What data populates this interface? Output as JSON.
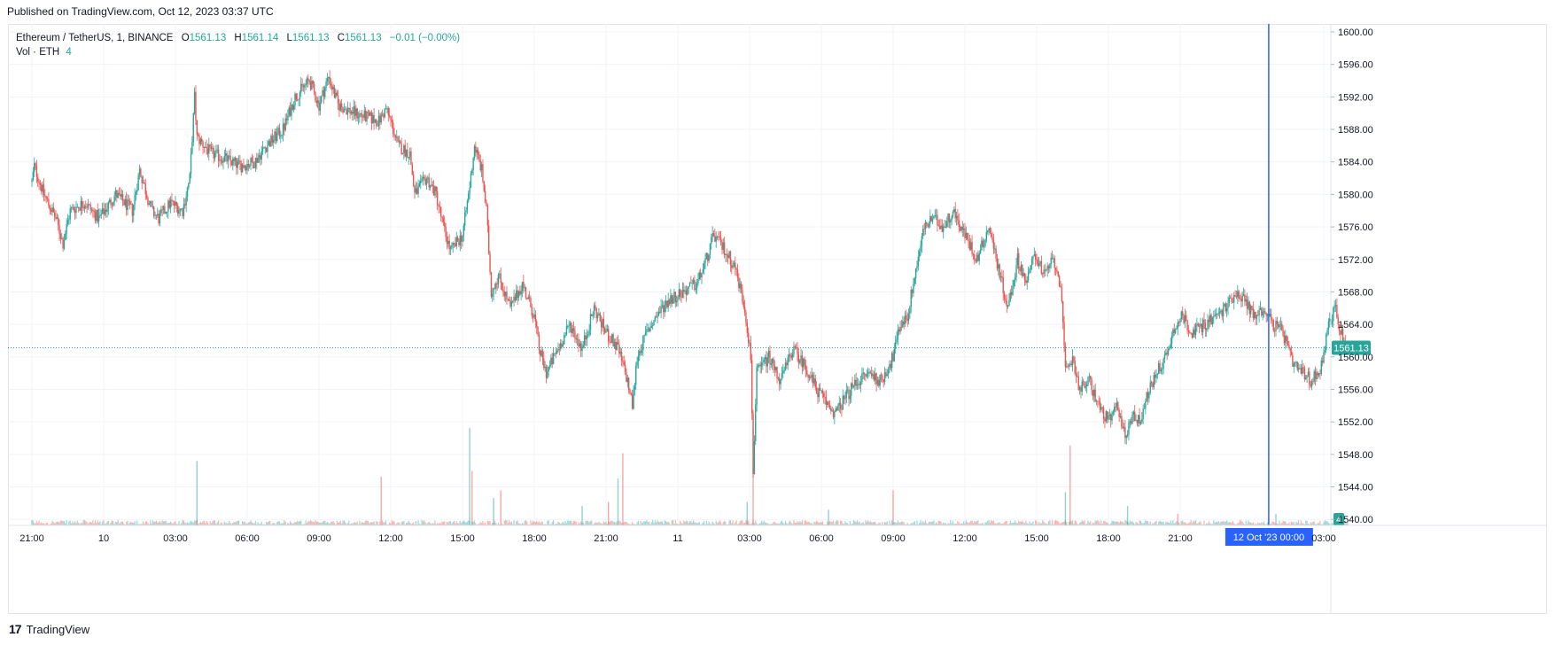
{
  "header": {
    "published": "Published on TradingView.com, Oct 12, 2023 03:37 UTC"
  },
  "legend": {
    "symbol": "Ethereum / TetherUS, 1, BINANCE",
    "open_label": "O",
    "open": "1561.13",
    "high_label": "H",
    "high": "1561.14",
    "low_label": "L",
    "low": "1561.13",
    "close_label": "C",
    "close": "1561.13",
    "change": "−0.01 (−0.00%)",
    "vol_label": "Vol · ETH",
    "vol_value": "4"
  },
  "footer": {
    "brand": "TradingView"
  },
  "colors": {
    "up": "#26a69a",
    "down": "#ef5350",
    "cursor": "#2962ff",
    "grid": "#f0f3fa",
    "text": "#131722"
  },
  "chart_data": {
    "type": "candlestick",
    "symbol": "ETHUSDT",
    "ylim": [
      1538,
      1601
    ],
    "y_ticks": [
      "1600.00",
      "1596.00",
      "1592.00",
      "1588.00",
      "1584.00",
      "1580.00",
      "1576.00",
      "1572.00",
      "1568.00",
      "1564.00",
      "1560.00",
      "1556.00",
      "1552.00",
      "1548.00",
      "1544.00",
      "1540.00"
    ],
    "y_tick_values": [
      1600,
      1596,
      1592,
      1588,
      1584,
      1580,
      1576,
      1572,
      1568,
      1564,
      1560,
      1556,
      1552,
      1548,
      1544,
      1540
    ],
    "x_ticks": [
      "21:00",
      "10",
      "03:00",
      "06:00",
      "09:00",
      "12:00",
      "15:00",
      "18:00",
      "21:00",
      "11",
      "03:00",
      "06:00",
      "09:00",
      "12:00",
      "15:00",
      "18:00",
      "21:00",
      "03:00"
    ],
    "x_tick_hours": [
      0,
      3,
      6,
      9,
      12,
      15,
      18,
      21,
      24,
      27,
      30,
      33,
      36,
      39,
      42,
      45,
      48,
      54
    ],
    "price_path": [
      [
        0,
        1581.5
      ],
      [
        0.1,
        1583.5
      ],
      [
        0.5,
        1580
      ],
      [
        1.0,
        1577
      ],
      [
        1.3,
        1574
      ],
      [
        1.6,
        1578
      ],
      [
        2.2,
        1579
      ],
      [
        2.8,
        1577
      ],
      [
        3.5,
        1580
      ],
      [
        4.2,
        1578
      ],
      [
        4.5,
        1583
      ],
      [
        5.0,
        1578
      ],
      [
        5.3,
        1577
      ],
      [
        5.8,
        1579
      ],
      [
        6.3,
        1578
      ],
      [
        6.6,
        1582
      ],
      [
        6.8,
        1592
      ],
      [
        6.9,
        1587
      ],
      [
        7.5,
        1585
      ],
      [
        8.0,
        1584.5
      ],
      [
        8.7,
        1583.5
      ],
      [
        9.3,
        1584
      ],
      [
        9.8,
        1586
      ],
      [
        10.5,
        1588
      ],
      [
        11.0,
        1592
      ],
      [
        11.6,
        1594
      ],
      [
        12.0,
        1591
      ],
      [
        12.4,
        1594.5
      ],
      [
        12.8,
        1591
      ],
      [
        13.5,
        1590
      ],
      [
        14.0,
        1589.5
      ],
      [
        14.5,
        1589
      ],
      [
        14.8,
        1590.5
      ],
      [
        15.0,
        1589
      ],
      [
        15.3,
        1586
      ],
      [
        15.8,
        1585
      ],
      [
        16.0,
        1580
      ],
      [
        16.5,
        1582
      ],
      [
        16.9,
        1580
      ],
      [
        17.2,
        1576
      ],
      [
        17.5,
        1573
      ],
      [
        18.0,
        1575
      ],
      [
        18.3,
        1581
      ],
      [
        18.5,
        1586
      ],
      [
        18.8,
        1583
      ],
      [
        19.0,
        1578
      ],
      [
        19.2,
        1568
      ],
      [
        19.5,
        1570
      ],
      [
        20.0,
        1566
      ],
      [
        20.5,
        1569
      ],
      [
        21.0,
        1565
      ],
      [
        21.2,
        1561
      ],
      [
        21.5,
        1558
      ],
      [
        22.0,
        1561
      ],
      [
        22.5,
        1564
      ],
      [
        23.0,
        1561
      ],
      [
        23.5,
        1566
      ],
      [
        24.0,
        1563
      ],
      [
        24.5,
        1561
      ],
      [
        24.9,
        1557
      ],
      [
        25.1,
        1554
      ],
      [
        25.3,
        1560
      ],
      [
        25.7,
        1563
      ],
      [
        26.1,
        1565
      ],
      [
        26.6,
        1567
      ],
      [
        27.2,
        1568
      ],
      [
        27.8,
        1569
      ],
      [
        28.2,
        1572
      ],
      [
        28.5,
        1575
      ],
      [
        29.0,
        1573
      ],
      [
        29.4,
        1571
      ],
      [
        29.8,
        1566
      ],
      [
        30.05,
        1560
      ],
      [
        30.15,
        1546
      ],
      [
        30.3,
        1558
      ],
      [
        30.8,
        1560
      ],
      [
        31.3,
        1557
      ],
      [
        31.8,
        1561
      ],
      [
        32.3,
        1559
      ],
      [
        32.8,
        1556
      ],
      [
        33.3,
        1554
      ],
      [
        33.6,
        1553
      ],
      [
        34.0,
        1555
      ],
      [
        34.5,
        1557
      ],
      [
        35.0,
        1558
      ],
      [
        35.5,
        1557
      ],
      [
        36.0,
        1560
      ],
      [
        36.3,
        1564
      ],
      [
        36.6,
        1565
      ],
      [
        36.9,
        1570
      ],
      [
        37.3,
        1576
      ],
      [
        37.7,
        1577
      ],
      [
        38.1,
        1576
      ],
      [
        38.5,
        1578
      ],
      [
        39.0,
        1575
      ],
      [
        39.5,
        1572
      ],
      [
        40.0,
        1576
      ],
      [
        40.4,
        1571
      ],
      [
        40.8,
        1566
      ],
      [
        41.2,
        1572
      ],
      [
        41.6,
        1569
      ],
      [
        41.9,
        1573
      ],
      [
        42.3,
        1570
      ],
      [
        42.7,
        1572
      ],
      [
        43.0,
        1569
      ],
      [
        43.2,
        1558
      ],
      [
        43.5,
        1560
      ],
      [
        43.8,
        1556
      ],
      [
        44.2,
        1557
      ],
      [
        44.6,
        1554
      ],
      [
        45.0,
        1552
      ],
      [
        45.4,
        1554
      ],
      [
        45.7,
        1550
      ],
      [
        46.0,
        1553
      ],
      [
        46.3,
        1552
      ],
      [
        46.6,
        1555
      ],
      [
        47.0,
        1558
      ],
      [
        47.4,
        1560
      ],
      [
        47.8,
        1564
      ],
      [
        48.1,
        1565
      ],
      [
        48.5,
        1563
      ],
      [
        49.0,
        1564
      ],
      [
        49.5,
        1565
      ],
      [
        49.9,
        1566
      ],
      [
        50.3,
        1568
      ],
      [
        50.7,
        1567
      ],
      [
        51.1,
        1565
      ],
      [
        51.5,
        1566
      ],
      [
        51.9,
        1564
      ],
      [
        52.3,
        1563
      ],
      [
        52.7,
        1559
      ],
      [
        53.1,
        1558
      ],
      [
        53.5,
        1557
      ],
      [
        53.9,
        1559
      ],
      [
        54.2,
        1564
      ],
      [
        54.5,
        1566
      ],
      [
        54.7,
        1563
      ],
      [
        55.0,
        1561.13
      ]
    ],
    "volume_spikes": [
      [
        6.9,
        33
      ],
      [
        14.6,
        25
      ],
      [
        18.3,
        50
      ],
      [
        18.4,
        28
      ],
      [
        19.3,
        14
      ],
      [
        19.6,
        18
      ],
      [
        23.0,
        10
      ],
      [
        24.1,
        12
      ],
      [
        24.5,
        24
      ],
      [
        24.7,
        37
      ],
      [
        29.9,
        12
      ],
      [
        30.15,
        50
      ],
      [
        33.3,
        8
      ],
      [
        36.0,
        18
      ],
      [
        43.2,
        17
      ],
      [
        43.4,
        41
      ],
      [
        45.8,
        10
      ],
      [
        47.9,
        6
      ],
      [
        52.0,
        6
      ]
    ],
    "last_price": "1561.13",
    "last_value": 1561.13,
    "cursor_hour": 51.7,
    "cursor_label": "12 Oct '23   00:00",
    "volume_badge": "4"
  }
}
